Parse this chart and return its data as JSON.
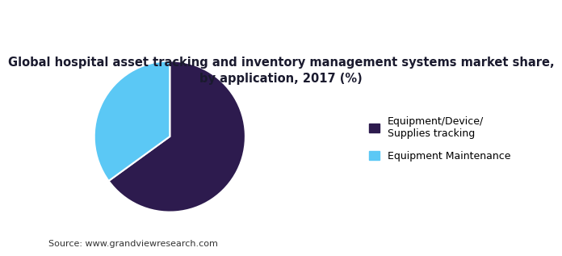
{
  "title": "Global hospital asset tracking and inventory management systems market share,\nby application, 2017 (%)",
  "title_fontsize": 10.5,
  "slices": [
    65,
    35
  ],
  "labels": [
    "Equipment/Device/\nSupplies tracking",
    "Equipment Maintenance"
  ],
  "colors": [
    "#2d1b4e",
    "#5bc8f5"
  ],
  "startangle": 90,
  "source_text": "Source: www.grandviewresearch.com",
  "background_color": "#ffffff",
  "title_color": "#1a1a2e",
  "legend_fontsize": 9,
  "source_fontsize": 8,
  "header_bar_color": "#6a3d9a",
  "header_line_color": "#7b4fa6"
}
